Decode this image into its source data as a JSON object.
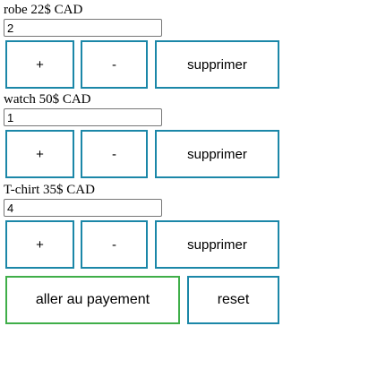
{
  "products": [
    {
      "title": "robe 22$ CAD",
      "quantity": "2",
      "plus_label": "+",
      "minus_label": "-",
      "remove_label": "supprimer"
    },
    {
      "title": "watch 50$ CAD",
      "quantity": "1",
      "plus_label": "+",
      "minus_label": "-",
      "remove_label": "supprimer"
    },
    {
      "title": "T-chirt 35$ CAD",
      "quantity": "4",
      "plus_label": "+",
      "minus_label": "-",
      "remove_label": "supprimer"
    }
  ],
  "footer": {
    "checkout_label": "aller au payement",
    "reset_label": "reset"
  },
  "colors": {
    "button_border": "#1b87a8",
    "checkout_border": "#3fae49"
  }
}
